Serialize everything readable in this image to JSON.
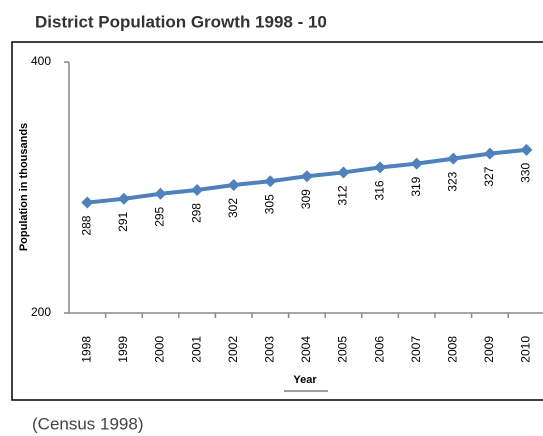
{
  "chart_data": {
    "type": "line",
    "title": "District Population Growth 1998 - 10",
    "x_label": "Year",
    "y_label": "Population in thousands",
    "note": "(Census 1998)",
    "categories": [
      "1998",
      "1999",
      "2000",
      "2001",
      "2002",
      "2003",
      "2004",
      "2005",
      "2006",
      "2007",
      "2008",
      "2009",
      "2010"
    ],
    "series": [
      {
        "name": "Population",
        "color": "#4f81bd",
        "values": [
          288,
          291,
          295,
          298,
          302,
          305,
          309,
          312,
          316,
          319,
          323,
          327,
          330
        ]
      }
    ],
    "ylim": [
      200,
      400
    ],
    "yticks": [
      200,
      400
    ],
    "grid": false
  }
}
